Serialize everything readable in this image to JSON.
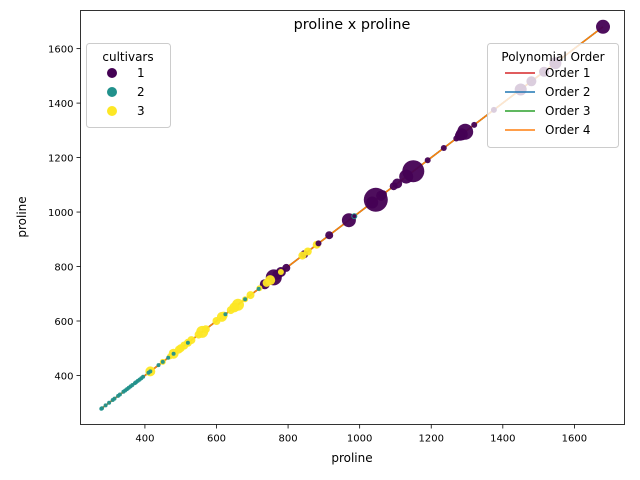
{
  "chart_data": {
    "type": "scatter",
    "title": "proline x proline",
    "xlabel": "proline",
    "ylabel": "proline",
    "xlim": [
      220,
      1740
    ],
    "ylim": [
      220,
      1740
    ],
    "xticks": [
      400,
      600,
      800,
      1000,
      1200,
      1400,
      1600
    ],
    "yticks": [
      400,
      600,
      800,
      1000,
      1200,
      1400,
      1600
    ],
    "grid": false,
    "legends": {
      "cultivars": {
        "title": "cultivars",
        "placement": "top-left",
        "entries": [
          {
            "label": "1",
            "color": "#440154"
          },
          {
            "label": "2",
            "color": "#21918c"
          },
          {
            "label": "3",
            "color": "#fde725"
          }
        ]
      },
      "fits": {
        "title": "Polynomial Order",
        "placement": "top-right",
        "entries": [
          {
            "label": "Order 1",
            "color": "#d62728"
          },
          {
            "label": "Order 2",
            "color": "#1f77b4"
          },
          {
            "label": "Order 3",
            "color": "#2ca02c"
          },
          {
            "label": "Order 4",
            "color": "#ff7f0e"
          }
        ]
      }
    },
    "fit_lines": [
      {
        "name": "Order 1",
        "color": "#d62728",
        "x": [
          278,
          1680
        ],
        "y": [
          278,
          1680
        ]
      },
      {
        "name": "Order 2",
        "color": "#1f77b4",
        "x": [
          278,
          1680
        ],
        "y": [
          278,
          1680
        ]
      },
      {
        "name": "Order 3",
        "color": "#2ca02c",
        "x": [
          278,
          1680
        ],
        "y": [
          278,
          1680
        ]
      },
      {
        "name": "Order 4",
        "color": "#ff7f0e",
        "x": [
          278,
          1680
        ],
        "y": [
          278,
          1680
        ]
      }
    ],
    "series": [
      {
        "name": "1",
        "color": "#440154",
        "x": [
          1680,
          1547,
          1515,
          1480,
          1450,
          1375,
          1320,
          1295,
          1285,
          1280,
          1270,
          1235,
          1190,
          1150,
          1130,
          1105,
          1095,
          1065,
          1060,
          1045,
          1035,
          985,
          970,
          915,
          885,
          845,
          795,
          780,
          770,
          760,
          735
        ],
        "y": [
          1680,
          1547,
          1515,
          1480,
          1450,
          1375,
          1320,
          1295,
          1285,
          1280,
          1270,
          1235,
          1190,
          1150,
          1130,
          1105,
          1095,
          1065,
          1060,
          1045,
          1035,
          985,
          970,
          915,
          885,
          845,
          795,
          780,
          770,
          760,
          735
        ]
      },
      {
        "name": "2",
        "color": "#21918c",
        "x": [
          985,
          718,
          680,
          625,
          520,
          480,
          465,
          450,
          438,
          415,
          410,
          395,
          390,
          385,
          380,
          375,
          372,
          365,
          360,
          355,
          350,
          345,
          340,
          330,
          325,
          315,
          310,
          300,
          290,
          280,
          278
        ],
        "y": [
          985,
          718,
          680,
          625,
          520,
          480,
          465,
          450,
          438,
          415,
          410,
          395,
          390,
          385,
          380,
          375,
          372,
          365,
          360,
          355,
          350,
          345,
          340,
          330,
          325,
          315,
          310,
          300,
          290,
          280,
          278
        ]
      },
      {
        "name": "3",
        "color": "#fde725",
        "x": [
          880,
          855,
          840,
          780,
          750,
          740,
          720,
          695,
          680,
          660,
          650,
          640,
          620,
          615,
          600,
          570,
          560,
          550,
          530,
          520,
          510,
          500,
          495,
          480,
          470,
          450,
          415
        ],
        "y": [
          880,
          855,
          840,
          780,
          750,
          740,
          720,
          695,
          680,
          660,
          650,
          640,
          620,
          615,
          600,
          570,
          560,
          550,
          530,
          520,
          510,
          500,
          495,
          480,
          470,
          450,
          415
        ]
      }
    ],
    "marker_sizes": {
      "1": [
        7,
        6,
        5,
        5,
        6,
        3,
        3,
        8,
        6,
        5,
        3,
        3,
        3,
        11,
        7,
        5,
        4,
        4,
        5,
        12,
        6,
        2,
        7,
        4,
        3,
        4,
        4,
        5,
        5,
        8,
        5
      ],
      "2": [
        3,
        2,
        2,
        2,
        2,
        2,
        2,
        2,
        2,
        2,
        2,
        2,
        2,
        2,
        2,
        2,
        2,
        2,
        2,
        2,
        2,
        2,
        2,
        2,
        2,
        2,
        2,
        2,
        2,
        2,
        2
      ],
      "3": [
        4,
        4,
        4,
        3,
        5,
        4,
        3,
        4,
        3,
        6,
        5,
        4,
        4,
        5,
        4,
        4,
        6,
        4,
        4,
        4,
        4,
        4,
        4,
        5,
        3,
        3,
        5
      ]
    }
  }
}
